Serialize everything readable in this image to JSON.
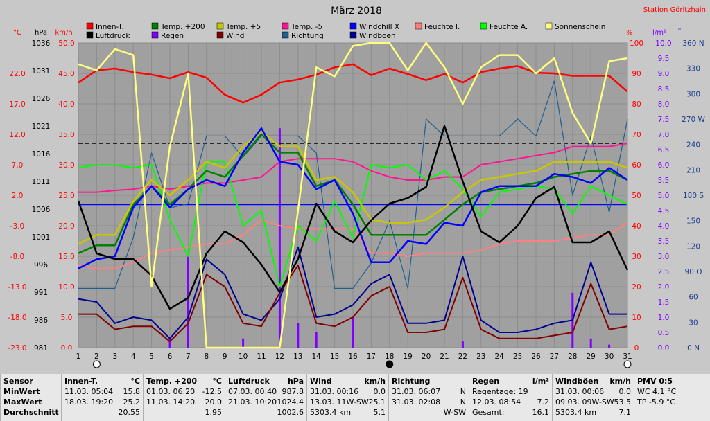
{
  "station": "Station Göritzhain",
  "chart_data": {
    "type": "line",
    "title": "März 2018",
    "days": [
      1,
      2,
      3,
      4,
      5,
      6,
      7,
      8,
      9,
      10,
      11,
      12,
      13,
      14,
      15,
      16,
      17,
      18,
      19,
      20,
      21,
      22,
      23,
      24,
      25,
      26,
      27,
      28,
      29,
      30,
      31
    ],
    "axes": {
      "temp": {
        "unit": "°C",
        "ticks": [
          "22.0",
          "17.0",
          "12.0",
          "7.0",
          "2.0",
          "-3.0",
          "-8.0",
          "-13.0",
          "-18.0",
          "-23.0"
        ],
        "range": [
          -23,
          27
        ]
      },
      "press": {
        "unit": "hPa",
        "ticks": [
          "1036",
          "1031",
          "1026",
          "1021",
          "1016",
          "1011",
          "1006",
          "1001",
          "996",
          "991",
          "986",
          "981"
        ],
        "range": [
          981,
          1036
        ]
      },
      "wind": {
        "unit": "km/h",
        "ticks": [
          "50.0",
          "45.0",
          "40.0",
          "35.0",
          "30.0",
          "25.0",
          "20.0",
          "15.0",
          "10.0",
          "5.0",
          "0.0"
        ],
        "range": [
          0,
          50
        ]
      },
      "hum": {
        "unit": "%",
        "ticks": [
          "100",
          "90",
          "80",
          "70",
          "60",
          "50",
          "40",
          "30",
          "20",
          "10",
          "0"
        ],
        "range": [
          0,
          100
        ]
      },
      "rain": {
        "unit": "l/m²",
        "ticks": [
          "10.0",
          "9.5",
          "9.0",
          "8.5",
          "8.0",
          "7.5",
          "7.0",
          "6.5",
          "6.0",
          "5.5",
          "5.0",
          "4.5",
          "4.0",
          "3.5",
          "3.0",
          "2.5",
          "2.0",
          "1.5",
          "1.0",
          "0.5",
          "0.0"
        ],
        "range": [
          0,
          10
        ]
      },
      "dir": {
        "unit": "°",
        "ticks": [
          "360 N",
          "330",
          "300",
          "270 W",
          "240",
          "210",
          "180 S",
          "150",
          "120",
          "90 O",
          "60",
          "30",
          "0 N"
        ],
        "range": [
          0,
          360
        ]
      }
    },
    "legend": [
      {
        "name": "Innen-T.",
        "color": "#ff0000"
      },
      {
        "name": "Luftdruck",
        "color": "#000000"
      },
      {
        "name": "Temp. +200",
        "color": "#008000"
      },
      {
        "name": "Regen",
        "color": "#8000ff"
      },
      {
        "name": "Temp. +5",
        "color": "#c8c800"
      },
      {
        "name": "Wind",
        "color": "#800000"
      },
      {
        "name": "Temp. -5",
        "color": "#ff1493"
      },
      {
        "name": "Richtung",
        "color": "#1f5f8f"
      },
      {
        "name": "Windchill X",
        "color": "#0000ff"
      },
      {
        "name": "Windböen",
        "color": "#000090"
      },
      {
        "name": "Feuchte I.",
        "color": "#ff8080"
      },
      {
        "name": "Feuchte A.",
        "color": "#00ff00"
      },
      {
        "name": "Sonnenschein",
        "color": "#ffff80"
      }
    ],
    "series": {
      "innen": {
        "axis": "wind",
        "color": "#ff0000",
        "values": [
          43.5,
          45.5,
          45.8,
          45.2,
          44.8,
          44.2,
          45.2,
          44.3,
          41.5,
          40.2,
          41.5,
          43.5,
          44,
          44.8,
          46,
          46.5,
          44.7,
          45.8,
          44.9,
          43.9,
          44.9,
          43.5,
          45.2,
          45.8,
          46.2,
          45.1,
          45,
          44.6,
          44.6,
          44.6,
          42
        ]
      },
      "sonne": {
        "axis": "hum",
        "color": "#ffff80",
        "values": [
          93,
          91,
          98,
          96,
          20,
          66,
          90,
          0,
          0,
          0,
          0,
          0,
          45,
          92,
          89,
          99,
          100,
          100,
          91,
          100,
          92,
          80,
          92,
          96,
          96,
          90,
          95,
          77,
          67,
          94,
          95
        ]
      },
      "druck": {
        "axis": "press",
        "color": "#000000",
        "values": [
          1007.5,
          998,
          997,
          997,
          994,
          988,
          990,
          998,
          1002,
          1000,
          996,
          991,
          997,
          1007,
          1002,
          1000,
          1004,
          1007,
          1008,
          1010,
          1021,
          1011,
          1002,
          1000,
          1003,
          1008,
          1010,
          1000,
          1000,
          1002,
          995
        ]
      },
      "t200": {
        "axis": "wind",
        "color": "#008000",
        "values": [
          15.5,
          16.8,
          16.8,
          23.5,
          26.5,
          23.5,
          26,
          29,
          28,
          31.5,
          35,
          32,
          32,
          26.5,
          27.5,
          23.5,
          18.5,
          18.5,
          18.5,
          18.5,
          21,
          23.5,
          25.5,
          26,
          26.5,
          27,
          28,
          28.5,
          29,
          29,
          27.5
        ]
      },
      "t5": {
        "axis": "wind",
        "color": "#c8c800",
        "values": [
          17,
          18.5,
          18.5,
          24,
          27.5,
          25,
          27.5,
          30.5,
          29.5,
          33,
          35.5,
          33,
          33,
          27.5,
          28,
          25.5,
          21,
          20.5,
          20.5,
          21,
          23,
          25.5,
          27.5,
          28,
          28.5,
          29,
          30.5,
          30.5,
          30.5,
          30.5,
          29.5
        ]
      },
      "tm5": {
        "axis": "wind",
        "color": "#ff1493",
        "values": [
          25.5,
          25.5,
          25.8,
          26,
          26.5,
          26,
          26.5,
          27,
          27,
          27.5,
          28,
          30.5,
          31,
          31,
          31,
          30.5,
          29,
          28,
          27.5,
          27.5,
          28,
          28,
          30,
          30.5,
          31,
          31.5,
          32,
          33,
          33,
          33,
          33.5
        ]
      },
      "wchill": {
        "axis": "wind",
        "color": "#0000ff",
        "values": [
          13,
          14.5,
          15,
          23,
          26.5,
          23,
          26,
          27.5,
          26.5,
          32,
          36,
          30.5,
          30,
          26,
          27.5,
          22,
          14,
          14,
          17.5,
          17,
          20.5,
          20,
          25.5,
          26.5,
          26.5,
          26.5,
          28.5,
          28,
          27,
          29.5,
          27.5
        ]
      },
      "feuchtA": {
        "axis": "hum",
        "color": "#00ff00",
        "values": [
          59,
          60,
          60,
          59,
          60,
          42,
          30,
          61,
          61,
          40,
          45,
          20,
          40,
          35,
          48,
          36,
          60,
          59,
          60,
          55,
          58,
          52,
          43,
          51,
          52,
          53,
          52,
          44,
          53,
          50,
          47
        ]
      },
      "feuchtI": {
        "axis": "hum",
        "color": "#ff8080",
        "values": [
          27,
          26,
          26,
          28,
          31,
          32,
          33,
          34,
          34,
          37,
          42,
          40,
          39,
          39,
          39,
          39,
          31,
          31,
          30,
          31,
          31,
          31,
          32,
          34,
          35,
          35,
          35,
          36,
          37,
          37,
          41
        ]
      },
      "richtung": {
        "axis": "dir",
        "color": "#1f5f8f",
        "values": [
          70,
          70,
          70,
          130,
          230,
          165,
          170,
          250,
          250,
          225,
          250,
          250,
          250,
          230,
          70,
          70,
          100,
          150,
          70,
          270,
          250,
          250,
          250,
          250,
          270,
          250,
          315,
          180,
          250,
          160,
          270
        ]
      },
      "boeen": {
        "axis": "wind",
        "color": "#000090",
        "values": [
          8,
          7.5,
          4,
          5,
          4.5,
          1.5,
          5,
          14.5,
          12,
          5.5,
          4.5,
          8,
          16.5,
          5,
          5.5,
          7,
          10.5,
          12,
          4,
          4,
          4.5,
          15,
          4.5,
          2.5,
          2.5,
          3,
          4,
          4.5,
          14,
          5.5,
          5.5
        ]
      },
      "wind": {
        "axis": "wind",
        "color": "#800000",
        "values": [
          5.5,
          5.5,
          3,
          3.5,
          3.5,
          1,
          4,
          12,
          10,
          4,
          3.5,
          9,
          13.5,
          4,
          3.5,
          5,
          8.5,
          10,
          2.5,
          2.5,
          3,
          11.5,
          3,
          1.5,
          1.5,
          1.5,
          2,
          2.5,
          10.5,
          3,
          3.5
        ]
      },
      "regen": {
        "axis": "rain",
        "color": "#8000ff",
        "values": [
          0,
          0,
          0,
          0,
          0,
          0.3,
          3,
          0,
          0,
          0.3,
          0,
          7.2,
          0.8,
          0.5,
          0,
          1,
          0,
          0,
          0,
          0,
          0,
          0.2,
          0,
          0,
          0,
          0,
          0,
          1.8,
          0.3,
          0.1,
          0
        ]
      }
    },
    "refLines": {
      "dashed_temp": 10.5,
      "solid_wind": 23.5
    },
    "ylim_temp": [
      -23,
      27
    ]
  },
  "panel": {
    "sensor": {
      "h": "Sensor",
      "r1": "MinWert",
      "r2": "MaxWert",
      "r3": "Durchschnitt"
    },
    "innen": {
      "h": "Innen-T.",
      "u": "°C",
      "r1a": "11.03.  05:04",
      "r1b": "15.8",
      "r2a": "18.03.  19:20",
      "r2b": "25.2",
      "r3b": "20.55"
    },
    "temp": {
      "h": "Temp. +200",
      "u": "°C",
      "r1a": "01.03.  06:20",
      "r1b": "-12.5",
      "r2a": "11.03.  14:20",
      "r2b": "20.0",
      "r3b": "1.95"
    },
    "druck": {
      "h": "Luftdruck",
      "u": "hPa",
      "r1a": "07.03.  00:40",
      "r1b": "987.8",
      "r2a": "21.03.  10:20",
      "r2b": "1024.4",
      "r3b": "1002.6"
    },
    "wind": {
      "h": "Wind",
      "u": "km/h",
      "r1a": "31.03.  00:16",
      "r1b": "0.0",
      "r2a": "13.03.  11W-SW",
      "r2b": "25.1",
      "r3a": "5303.4 km",
      "r3b": "5.1"
    },
    "richtung": {
      "h": "Richtung",
      "r1a": "31.03.  06:07",
      "r1b": "N",
      "r2a": "31.03.  02:08",
      "r2b": "N",
      "r3b": "W-SW"
    },
    "regen": {
      "h": "Regen",
      "u": "l/m²",
      "r1a": "Regentage: 19",
      "r2a": "12.03.  08:54",
      "r2b": "7.2",
      "r3a": "Gesamt:",
      "r3b": "16.1"
    },
    "boeen": {
      "h": "Windböen",
      "u": "km/h",
      "r1a": "31.03.  00:06",
      "r1b": "0.0",
      "r2a": "09.03.  09W-SW",
      "r2b": "53.5",
      "r3a": "5303.4 km",
      "r3b": "7.1"
    },
    "pmv": {
      "h": "PMV 0:5",
      "r1": "WC 4.1 °C",
      "r2": "TP -5.9 °C"
    }
  }
}
